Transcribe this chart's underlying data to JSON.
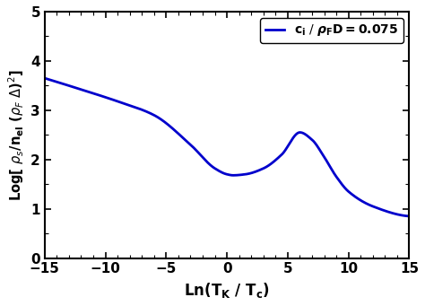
{
  "title": "",
  "xlabel": "Ln(T$_{K}$ / T$_{c}$)",
  "ylabel": "Log[ $\\rho_s$/n$_{el}$ ($\\rho_F$ $\\Delta$)$^2$]",
  "xlim": [
    -15,
    15
  ],
  "ylim": [
    0,
    5
  ],
  "xticks": [
    -15,
    -10,
    -5,
    0,
    5,
    10,
    15
  ],
  "yticks": [
    0,
    1,
    2,
    3,
    4,
    5
  ],
  "line_color": "#0000CC",
  "line_width": 2.0,
  "background_color": "#ffffff",
  "curve_keypoints": {
    "x": [
      -15,
      -12,
      -9,
      -6,
      -3,
      -1,
      0,
      0.5,
      1.5,
      3,
      4.5,
      6,
      7,
      8,
      9,
      10,
      12,
      15
    ],
    "y": [
      3.65,
      3.42,
      3.18,
      2.9,
      2.3,
      1.82,
      1.7,
      1.68,
      1.7,
      1.82,
      2.1,
      2.55,
      2.4,
      2.05,
      1.65,
      1.35,
      1.05,
      0.85
    ]
  }
}
